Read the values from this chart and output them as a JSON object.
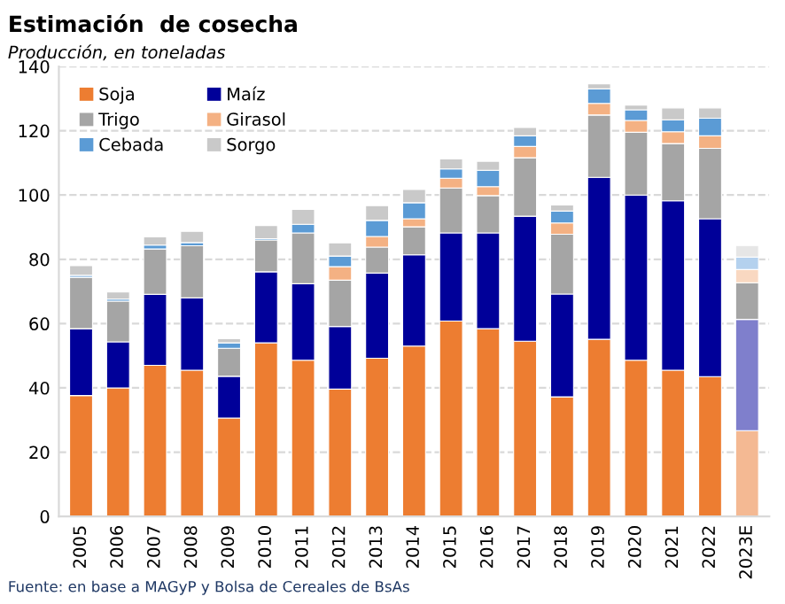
{
  "chart_data": {
    "type": "bar",
    "stacked": true,
    "title": "Estimación  de cosecha",
    "subtitle": "Producción, en toneladas",
    "categories": [
      "2005",
      "2006",
      "2007",
      "2008",
      "2009",
      "2010",
      "2011",
      "2012",
      "2013",
      "2014",
      "2015",
      "2016",
      "2017",
      "2018",
      "2019",
      "2020",
      "2021",
      "2022",
      "2023E"
    ],
    "series": [
      {
        "name": "Soja",
        "color": "#ed7d31",
        "colors": [
          "#ed7d31",
          "#ed7d31",
          "#ed7d31",
          "#ed7d31",
          "#ed7d31",
          "#ed7d31",
          "#ed7d31",
          "#ed7d31",
          "#ed7d31",
          "#ed7d31",
          "#ed7d31",
          "#ed7d31",
          "#ed7d31",
          "#ed7d31",
          "#ed7d31",
          "#ed7d31",
          "#ed7d31",
          "#ed7d31",
          "#f4b993"
        ],
        "values": [
          37.6,
          40.0,
          47.0,
          45.5,
          30.6,
          54.0,
          48.6,
          39.6,
          49.2,
          53.0,
          60.8,
          58.4,
          54.5,
          37.2,
          55.1,
          48.6,
          45.5,
          43.5,
          26.7
        ]
      },
      {
        "name": "Maíz",
        "color": "#000099",
        "colors": [
          "#000099",
          "#000099",
          "#000099",
          "#000099",
          "#000099",
          "#000099",
          "#000099",
          "#000099",
          "#000099",
          "#000099",
          "#000099",
          "#000099",
          "#000099",
          "#000099",
          "#000099",
          "#000099",
          "#000099",
          "#000099",
          "#7f7fcc"
        ],
        "values": [
          20.8,
          14.3,
          22.1,
          22.5,
          13.0,
          22.1,
          23.8,
          19.5,
          26.5,
          28.4,
          27.4,
          29.8,
          38.9,
          32.0,
          50.4,
          51.4,
          52.7,
          49.1,
          34.6
        ]
      },
      {
        "name": "Trigo",
        "color": "#a5a5a5",
        "colors": [
          "#a5a5a5",
          "#a5a5a5",
          "#a5a5a5",
          "#a5a5a5",
          "#a5a5a5",
          "#a5a5a5",
          "#a5a5a5",
          "#a5a5a5",
          "#a5a5a5",
          "#a5a5a5",
          "#a5a5a5",
          "#a5a5a5",
          "#a5a5a5",
          "#a5a5a5",
          "#a5a5a5",
          "#a5a5a5",
          "#a5a5a5",
          "#a5a5a5",
          "#a5a5a5"
        ],
        "values": [
          16.0,
          12.7,
          14.1,
          16.2,
          8.7,
          9.9,
          15.8,
          14.4,
          8.1,
          8.7,
          14.0,
          11.6,
          18.2,
          18.6,
          19.4,
          19.5,
          17.8,
          21.9,
          11.4
        ]
      },
      {
        "name": "Girasol",
        "color": "#f4b183",
        "colors": [
          "#f4b183",
          "#f4b183",
          "#f4b183",
          "#f4b183",
          "#f4b183",
          "#f4b183",
          "#f4b183",
          "#f4b183",
          "#f4b183",
          "#f4b183",
          "#f4b183",
          "#f4b183",
          "#f4b183",
          "#f4b183",
          "#f4b183",
          "#f4b183",
          "#f4b183",
          "#f4b183",
          "#f9d8c1"
        ],
        "values": [
          null,
          null,
          null,
          null,
          null,
          null,
          null,
          4.2,
          3.3,
          2.5,
          3.0,
          2.8,
          3.5,
          3.5,
          3.6,
          3.7,
          3.7,
          3.9,
          4.1
        ]
      },
      {
        "name": "Cebada",
        "color": "#5b9bd5",
        "colors": [
          "#5b9bd5",
          "#5b9bd5",
          "#5b9bd5",
          "#5b9bd5",
          "#5b9bd5",
          "#5b9bd5",
          "#5b9bd5",
          "#5b9bd5",
          "#5b9bd5",
          "#5b9bd5",
          "#5b9bd5",
          "#5b9bd5",
          "#5b9bd5",
          "#5b9bd5",
          "#5b9bd5",
          "#5b9bd5",
          "#5b9bd5",
          "#5b9bd5",
          "#b4d1ee"
        ],
        "values": [
          0.6,
          0.6,
          1.2,
          1.0,
          1.7,
          0.4,
          2.7,
          3.3,
          5.0,
          5.0,
          2.9,
          5.1,
          3.3,
          3.7,
          4.5,
          3.3,
          3.7,
          5.5,
          3.9
        ]
      },
      {
        "name": "Sorgo",
        "color": "#c9c9c9",
        "colors": [
          "#c9c9c9",
          "#c9c9c9",
          "#c9c9c9",
          "#c9c9c9",
          "#c9c9c9",
          "#c9c9c9",
          "#c9c9c9",
          "#c9c9c9",
          "#c9c9c9",
          "#c9c9c9",
          "#c9c9c9",
          "#c9c9c9",
          "#c9c9c9",
          "#c9c9c9",
          "#c9c9c9",
          "#c9c9c9",
          "#c9c9c9",
          "#c9c9c9",
          "#e6e6e6"
        ],
        "values": [
          3.0,
          2.2,
          2.6,
          3.5,
          1.3,
          4.1,
          4.6,
          4.1,
          4.6,
          4.1,
          3.1,
          2.8,
          2.6,
          1.9,
          1.6,
          1.5,
          3.7,
          3.2,
          3.6
        ]
      }
    ],
    "ylim": [
      0,
      140
    ],
    "yticks": [
      0,
      20,
      40,
      60,
      80,
      100,
      120,
      140
    ],
    "grid": "y",
    "legend": "top left",
    "annotations": [
      "Fuente: en base a MAGyP y Bolsa de Cereales de BsAs"
    ]
  }
}
